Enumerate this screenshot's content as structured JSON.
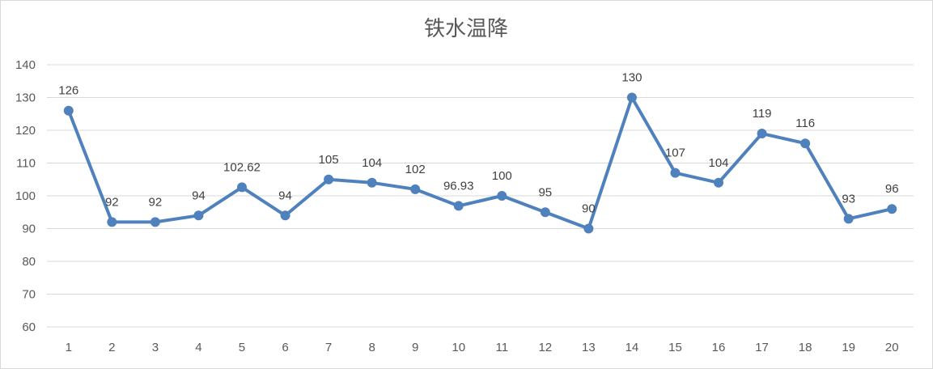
{
  "chart_data": {
    "type": "line",
    "title": "铁水温降",
    "xlabel": "",
    "ylabel": "",
    "categories": [
      "1",
      "2",
      "3",
      "4",
      "5",
      "6",
      "7",
      "8",
      "9",
      "10",
      "11",
      "12",
      "13",
      "14",
      "15",
      "16",
      "17",
      "18",
      "19",
      "20"
    ],
    "series": [
      {
        "values": [
          126,
          92,
          92,
          94,
          102.62,
          94,
          105,
          104,
          102,
          96.93,
          100,
          95,
          90,
          130,
          107,
          104,
          119,
          116,
          93,
          96
        ],
        "color": "#4f81bd"
      }
    ],
    "ylim": [
      60,
      140
    ],
    "yticks": [
      60,
      70,
      80,
      90,
      100,
      110,
      120,
      130,
      140
    ],
    "grid": true,
    "legend": "none",
    "data_labels": true
  }
}
